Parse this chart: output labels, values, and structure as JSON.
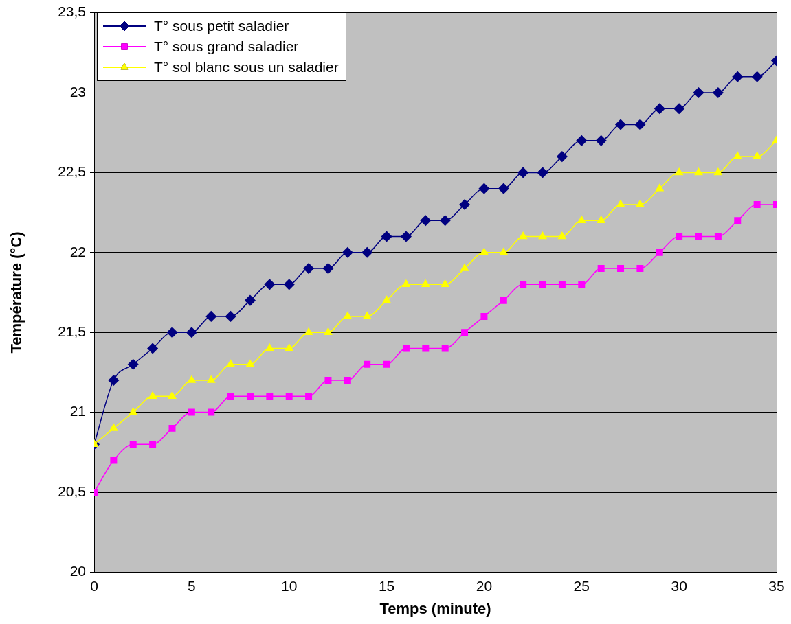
{
  "chart_data": {
    "type": "line",
    "xlabel": "Temps (minute)",
    "ylabel": "Température (°C)",
    "x": [
      0,
      1,
      2,
      3,
      4,
      5,
      6,
      7,
      8,
      9,
      10,
      11,
      12,
      13,
      14,
      15,
      16,
      17,
      18,
      19,
      20,
      21,
      22,
      23,
      24,
      25,
      26,
      27,
      28,
      29,
      30,
      31,
      32,
      33,
      34,
      35
    ],
    "series": [
      {
        "name": "T° sous petit saladier",
        "color": "#000080",
        "marker": "diamond",
        "values": [
          20.8,
          21.2,
          21.3,
          21.4,
          21.5,
          21.5,
          21.6,
          21.6,
          21.7,
          21.8,
          21.8,
          21.9,
          21.9,
          22.0,
          22.0,
          22.1,
          22.1,
          22.2,
          22.2,
          22.3,
          22.4,
          22.4,
          22.5,
          22.5,
          22.6,
          22.7,
          22.7,
          22.8,
          22.8,
          22.9,
          22.9,
          23.0,
          23.0,
          23.1,
          23.1,
          23.2
        ]
      },
      {
        "name": "T° sous grand saladier",
        "color": "#ff00ff",
        "marker": "square",
        "values": [
          20.5,
          20.7,
          20.8,
          20.8,
          20.9,
          21.0,
          21.0,
          21.1,
          21.1,
          21.1,
          21.1,
          21.1,
          21.2,
          21.2,
          21.3,
          21.3,
          21.4,
          21.4,
          21.4,
          21.5,
          21.6,
          21.7,
          21.8,
          21.8,
          21.8,
          21.8,
          21.9,
          21.9,
          21.9,
          22.0,
          22.1,
          22.1,
          22.1,
          22.2,
          22.3,
          22.3
        ]
      },
      {
        "name": "T° sol blanc sous un saladier",
        "color": "#ffff00",
        "marker": "triangle",
        "values": [
          20.8,
          20.9,
          21.0,
          21.1,
          21.1,
          21.2,
          21.2,
          21.3,
          21.3,
          21.4,
          21.4,
          21.5,
          21.5,
          21.6,
          21.6,
          21.7,
          21.8,
          21.8,
          21.8,
          21.9,
          22.0,
          22.0,
          22.1,
          22.1,
          22.1,
          22.2,
          22.2,
          22.3,
          22.3,
          22.4,
          22.5,
          22.5,
          22.5,
          22.6,
          22.6,
          22.7
        ]
      }
    ],
    "xlim": [
      0,
      35
    ],
    "xticks": [
      0,
      5,
      10,
      15,
      20,
      25,
      30,
      35
    ],
    "ylim": [
      20,
      23.5
    ],
    "yticks": [
      20,
      {
        "value": 20.5,
        "label": "20,5"
      },
      21,
      {
        "value": 21.5,
        "label": "21,5"
      },
      22,
      {
        "value": 22.5,
        "label": "22,5"
      },
      23,
      {
        "value": 23.5,
        "label": "23,5"
      }
    ],
    "grid": "y",
    "legend": "top left",
    "line_style": "solid"
  }
}
